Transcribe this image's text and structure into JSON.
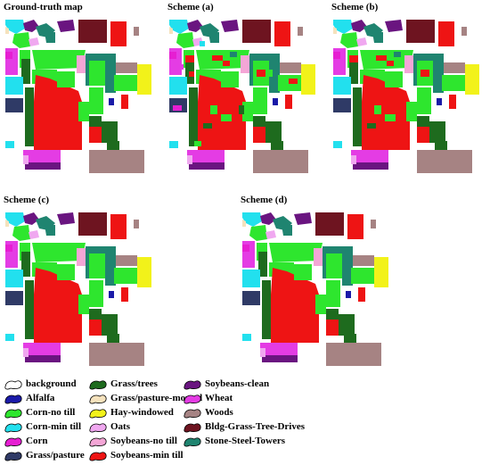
{
  "panels": [
    {
      "title": "Ground-truth map",
      "variant": "truth"
    },
    {
      "title": "Scheme (a)",
      "variant": "noisy"
    },
    {
      "title": "Scheme (b)",
      "variant": "noisy_light"
    },
    {
      "title": "Scheme (c)",
      "variant": "truth"
    },
    {
      "title": "Scheme (d)",
      "variant": "truth"
    }
  ],
  "legend": [
    {
      "label": "background",
      "color": "#ffffff"
    },
    {
      "label": "Alfalfa",
      "color": "#1a1aa8"
    },
    {
      "label": "Corn-no till",
      "color": "#2ee62e"
    },
    {
      "label": "Corn-min till",
      "color": "#22e0ee"
    },
    {
      "label": "Corn",
      "color": "#e61ed2"
    },
    {
      "label": "Grass/pasture",
      "color": "#2f3a66"
    },
    {
      "label": "Grass/trees",
      "color": "#1e6b1e"
    },
    {
      "label": "Grass/pasture-mowed",
      "color": "#f5e2bd"
    },
    {
      "label": "Hay-windowed",
      "color": "#f2f21a"
    },
    {
      "label": "Oats",
      "color": "#f0a8f0"
    },
    {
      "label": "Soybeans-no till",
      "color": "#f4a6d6"
    },
    {
      "label": "Soybeans-min till",
      "color": "#ee1414"
    },
    {
      "label": "Soybeans-clean",
      "color": "#6a1580"
    },
    {
      "label": "Wheat",
      "color": "#e43ce4"
    },
    {
      "label": "Woods",
      "color": "#a68383"
    },
    {
      "label": "Bldg-Grass-Tree-Drives",
      "color": "#6e1420"
    },
    {
      "label": "Stone-Steel-Towers",
      "color": "#1f8470"
    }
  ]
}
